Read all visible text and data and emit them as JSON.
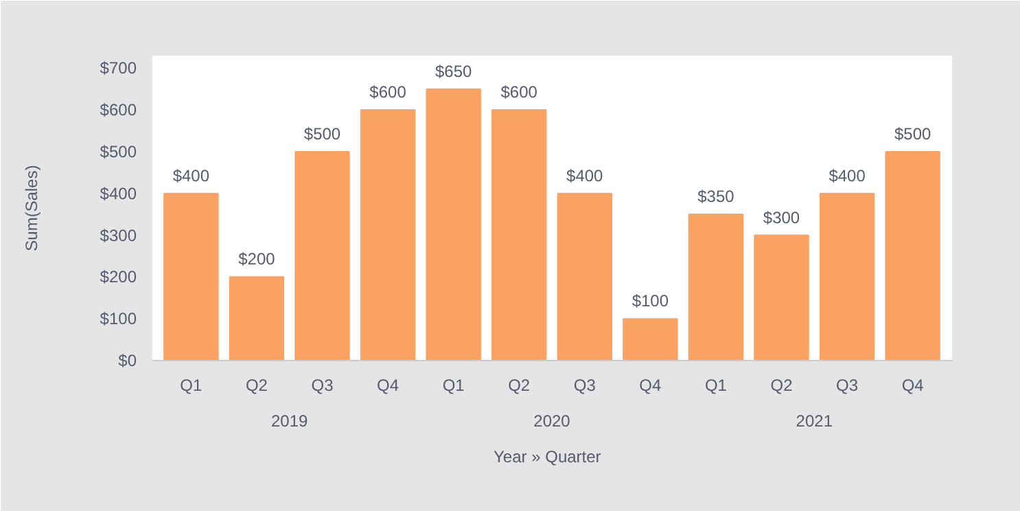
{
  "chart_data": {
    "type": "bar",
    "xlabel": "Year  »  Quarter",
    "ylabel": "Sum(Sales)",
    "categories": [
      "Q1",
      "Q2",
      "Q3",
      "Q4",
      "Q1",
      "Q2",
      "Q3",
      "Q4",
      "Q1",
      "Q2",
      "Q3",
      "Q4"
    ],
    "values": [
      400,
      200,
      500,
      600,
      650,
      600,
      400,
      100,
      350,
      300,
      400,
      500
    ],
    "color": "#f9a262",
    "data_labels": true,
    "value_labels": [
      "$400",
      "$200",
      "$500",
      "$600",
      "$650",
      "$600",
      "$400",
      "$100",
      "$350",
      "$300",
      "$400",
      "$500"
    ],
    "annotations": [
      "2019",
      "2020",
      "2021"
    ],
    "ylim": [
      0,
      730
    ],
    "yticks": [
      {
        "value": 0,
        "label": "$0"
      },
      {
        "value": 100,
        "label": "$100"
      },
      {
        "value": 200,
        "label": "$200"
      },
      {
        "value": 300,
        "label": "$300"
      },
      {
        "value": 400,
        "label": "$400"
      },
      {
        "value": 500,
        "label": "$500"
      },
      {
        "value": 600,
        "label": "$600"
      },
      {
        "value": 700,
        "label": "$700"
      }
    ],
    "grid": false
  }
}
